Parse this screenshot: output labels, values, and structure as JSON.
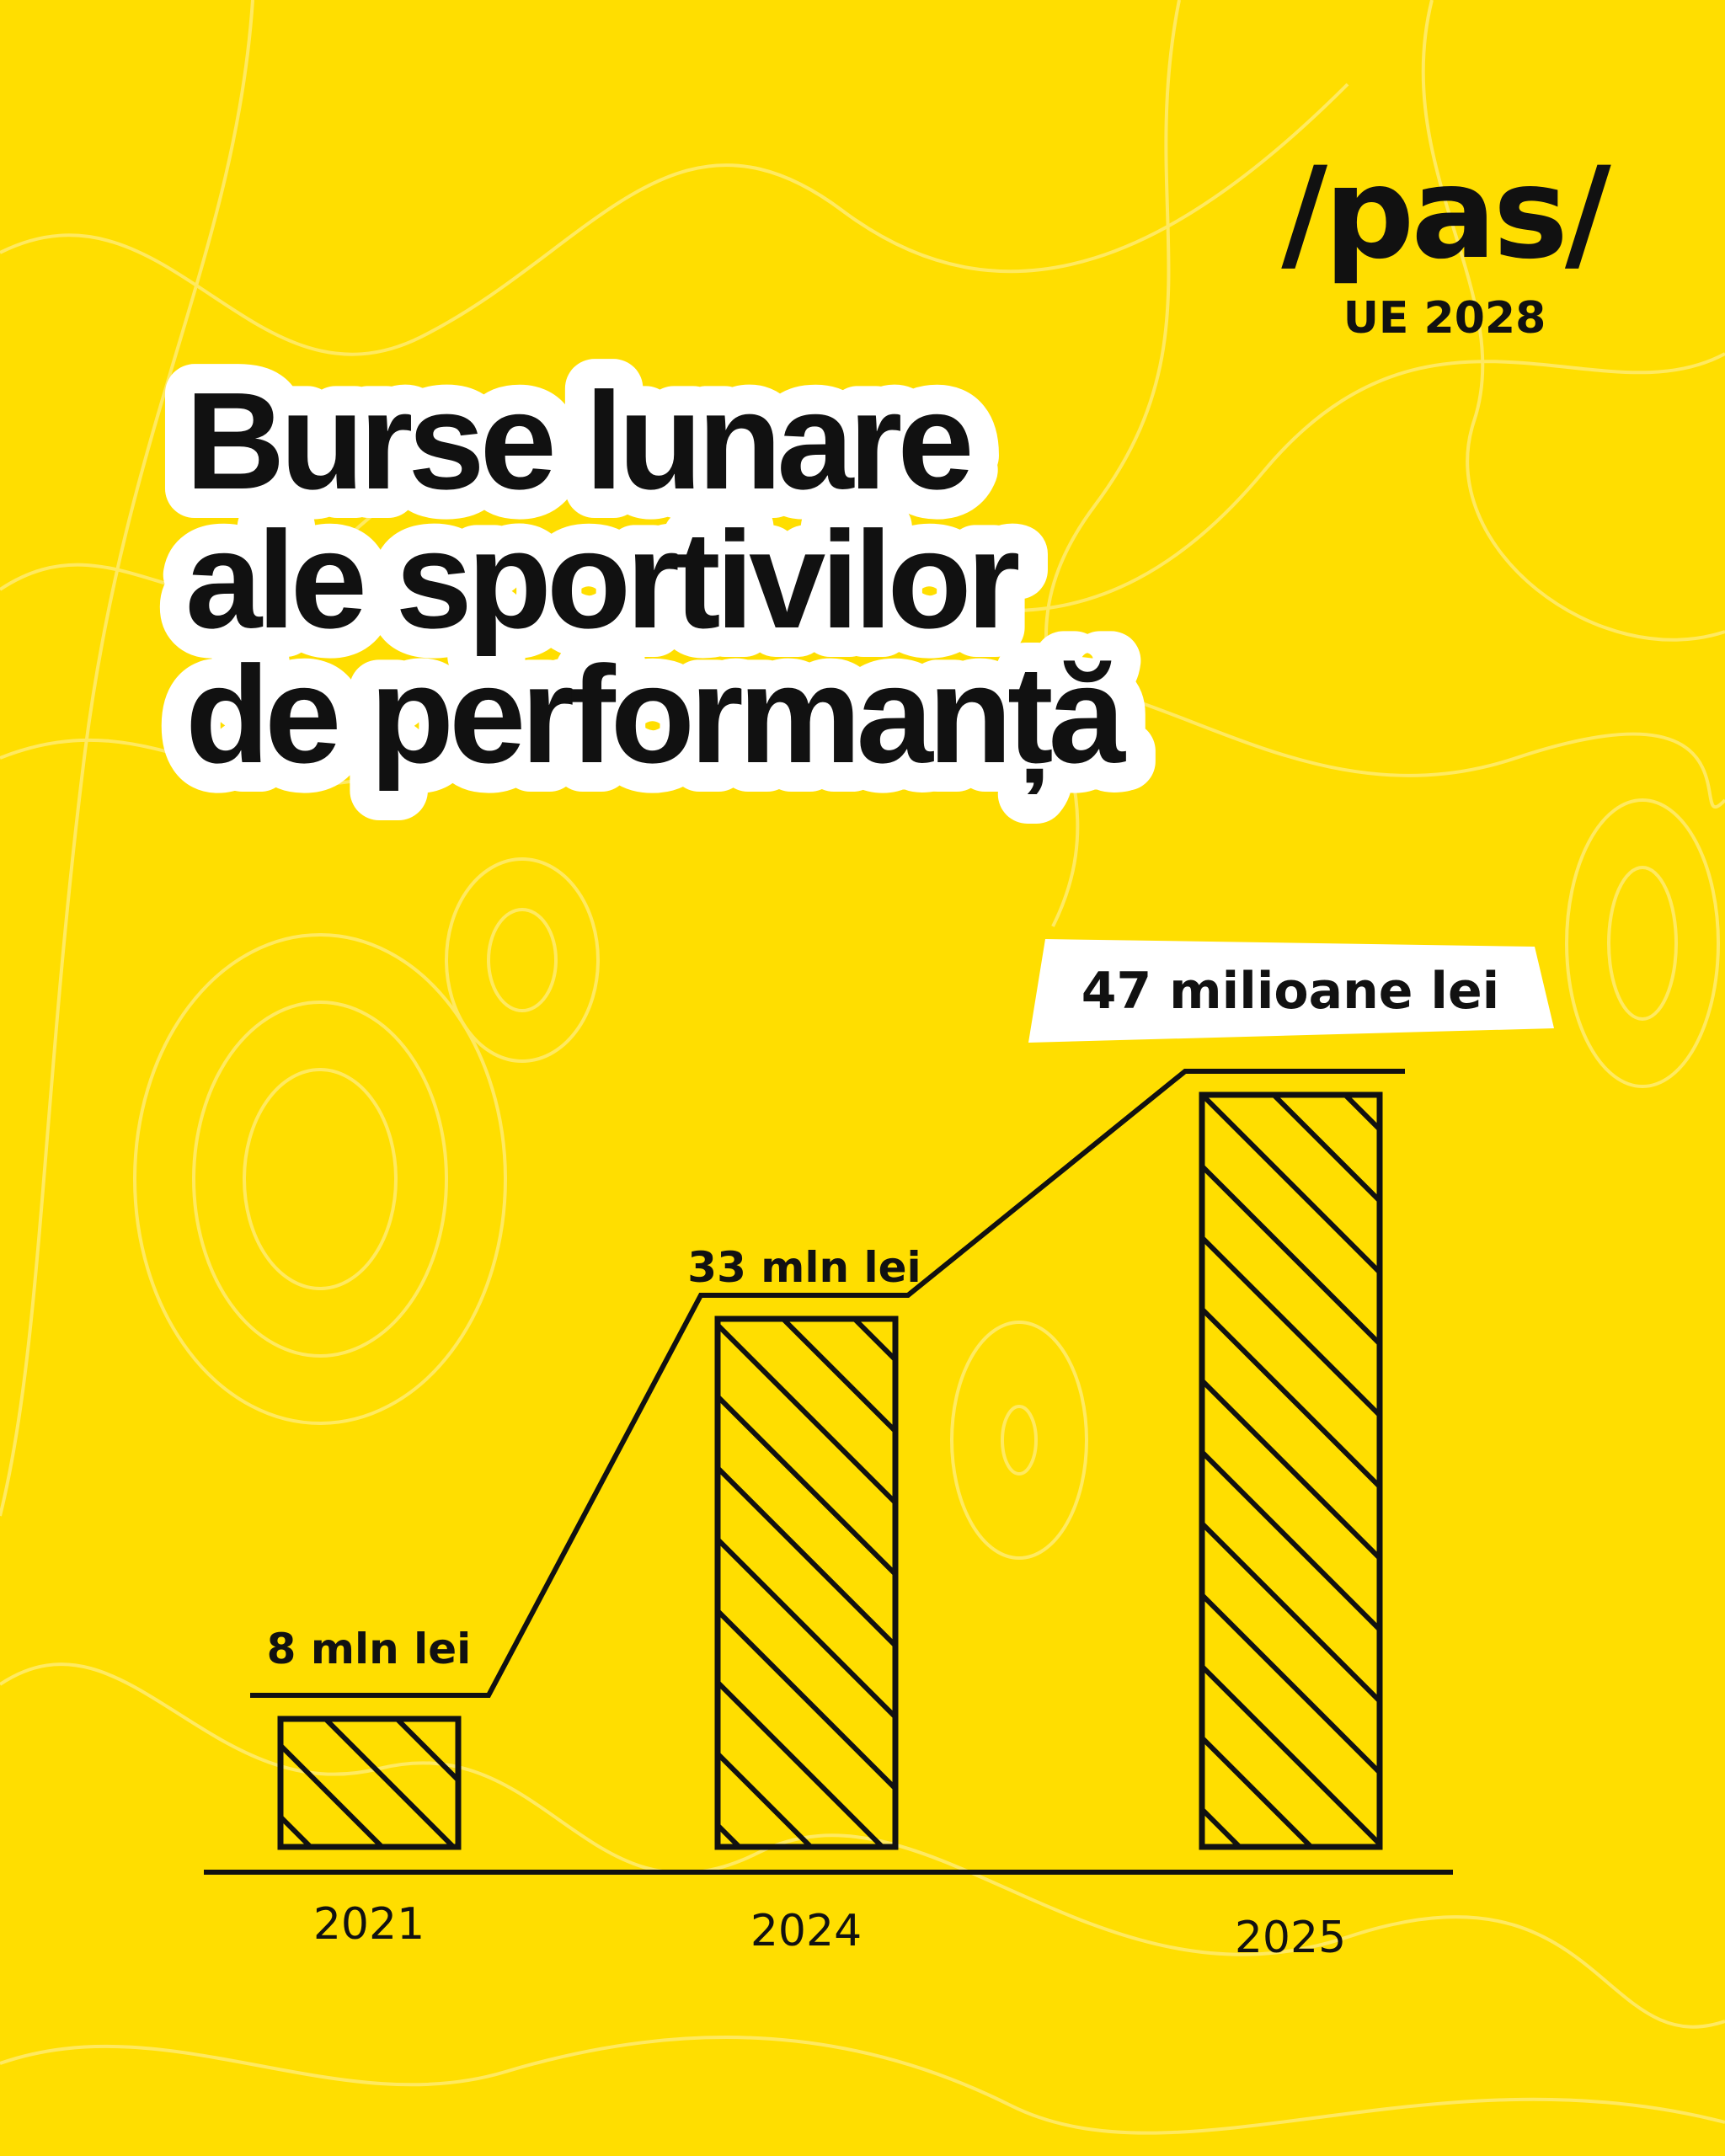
{
  "logo": {
    "brand": "/pas/",
    "subtitle": "UE 2028"
  },
  "title": {
    "lines": [
      "Burse lunare",
      "ale sportivilor",
      "de performanță"
    ]
  },
  "colors": {
    "background": "#FFDE00",
    "ink": "#111111",
    "title_outline": "#FFFFFF",
    "contours": "#FFEB6B"
  },
  "chart_data": {
    "type": "bar",
    "categories": [
      "2021",
      "2024",
      "2025"
    ],
    "values": [
      8,
      33,
      47
    ],
    "unit": "million lei",
    "data_labels": [
      "8 mln lei",
      "33 mln lei",
      "47 milioane lei"
    ],
    "bar_fill": "diagonal hatch",
    "step_line": true,
    "highlighted_label": "47 milioane lei"
  }
}
